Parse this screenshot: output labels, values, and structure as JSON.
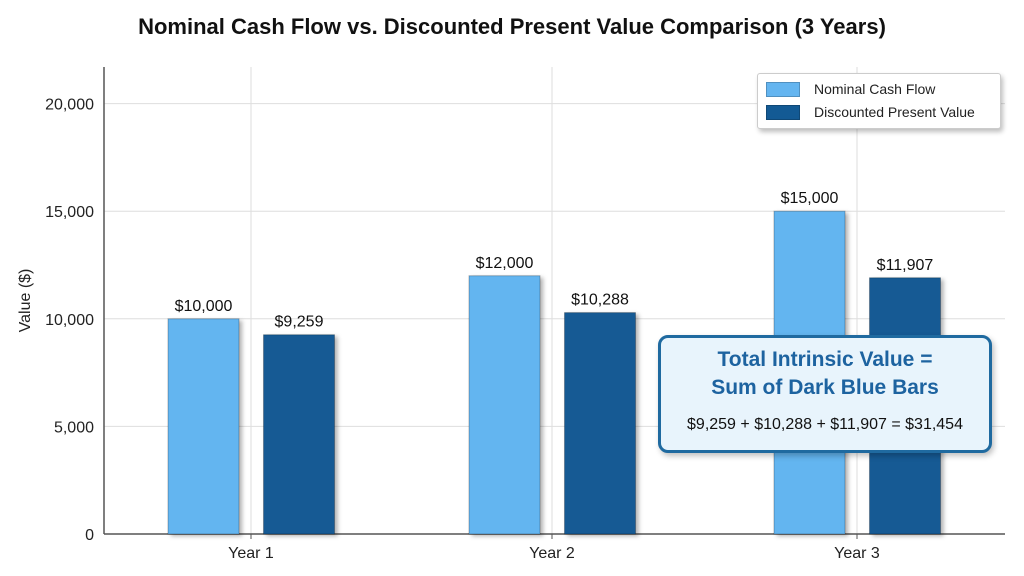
{
  "chart_data": {
    "type": "bar",
    "title": "Nominal Cash Flow vs. Discounted Present Value Comparison (3 Years)",
    "xlabel": "",
    "ylabel": "Value ($)",
    "ylim": [
      0,
      21700
    ],
    "yticks": [
      0,
      5000,
      10000,
      15000,
      20000
    ],
    "ytick_labels": [
      "0",
      "5,000",
      "10,000",
      "15,000",
      "20,000"
    ],
    "grid": true,
    "legend_position": "top-right",
    "categories": [
      "Year 1",
      "Year 2",
      "Year 3"
    ],
    "series": [
      {
        "name": "Nominal Cash Flow",
        "color": "#64b5f0",
        "values": [
          10000,
          12000,
          15000
        ],
        "labels": [
          "$10,000",
          "$12,000",
          "$15,000"
        ]
      },
      {
        "name": "Discounted Present Value",
        "color": "#135a94",
        "values": [
          9259,
          10288,
          11907
        ],
        "labels": [
          "$9,259",
          "$10,288",
          "$11,907"
        ]
      }
    ],
    "annotation": {
      "heading_line1": "Total Intrinsic Value =",
      "heading_line2": "Sum of Dark Blue Bars",
      "formula": "$9,259 + $10,288 + $11,907 = $31,454"
    }
  }
}
